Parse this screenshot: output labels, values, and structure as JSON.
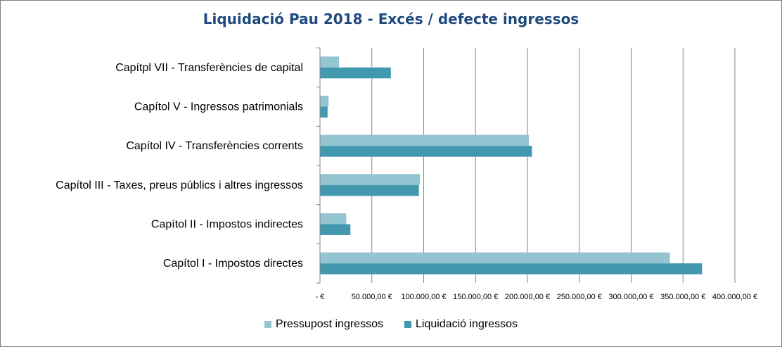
{
  "chart_data": {
    "type": "bar",
    "orientation": "horizontal",
    "title": "Liquidació Pau 2018 - Excés / defecte ingressos",
    "categories": [
      "Capítol I - Impostos directes",
      "Capítol II - Impostos indirectes",
      "Capítol III - Taxes, preus públics i altres ingressos",
      "Capítol IV - Transferències corrents",
      "Capítol V - Ingressos patrimonials",
      "Capítpl VII - Transferències de capital"
    ],
    "series": [
      {
        "name": "Pressupost ingressos",
        "color": "#93c4d2",
        "values": [
          337000,
          25000,
          96000,
          201000,
          8000,
          18000
        ]
      },
      {
        "name": "Liquidació ingressos",
        "color": "#4198af",
        "values": [
          368000,
          29000,
          95000,
          204000,
          7000,
          68000
        ]
      }
    ],
    "xlim": [
      0,
      400000
    ],
    "xticks": [
      0,
      50000,
      100000,
      150000,
      200000,
      250000,
      300000,
      350000,
      400000
    ],
    "xtick_labels": [
      "-   €",
      "50.000,00 €",
      "100.000,00 €",
      "150.000,00 €",
      "200.000,00 €",
      "250.000,00 €",
      "300.000,00 €",
      "350.000,00 €",
      "400.000,00 €"
    ],
    "grid": true,
    "legend_position": "bottom"
  }
}
